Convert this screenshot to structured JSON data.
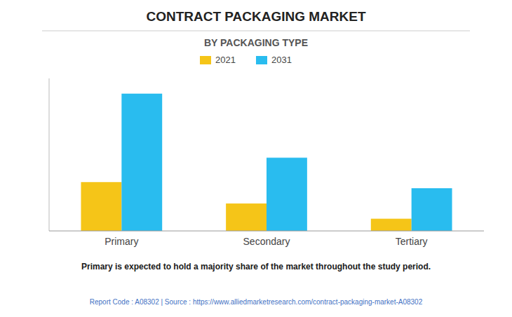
{
  "chart_data": {
    "type": "bar",
    "title": "CONTRACT PACKAGING MARKET",
    "subtitle": "BY PACKAGING TYPE",
    "categories": [
      "Primary",
      "Secondary",
      "Tertiary"
    ],
    "series": [
      {
        "name": "2021",
        "color": "#F5C518",
        "values": [
          32,
          18,
          8
        ]
      },
      {
        "name": "2031",
        "color": "#29BCEF",
        "values": [
          90,
          48,
          28
        ]
      }
    ],
    "ylim": [
      0,
      100
    ],
    "grid": false,
    "tick_labels": "x",
    "legend": "top",
    "annotations": [
      "Primary is expected to hold a majority share of the market throughout the study period.",
      "Report Code : A08302  |  Source : https://www.alliedmarketresearch.com/contract-packaging-market-A08302"
    ]
  }
}
